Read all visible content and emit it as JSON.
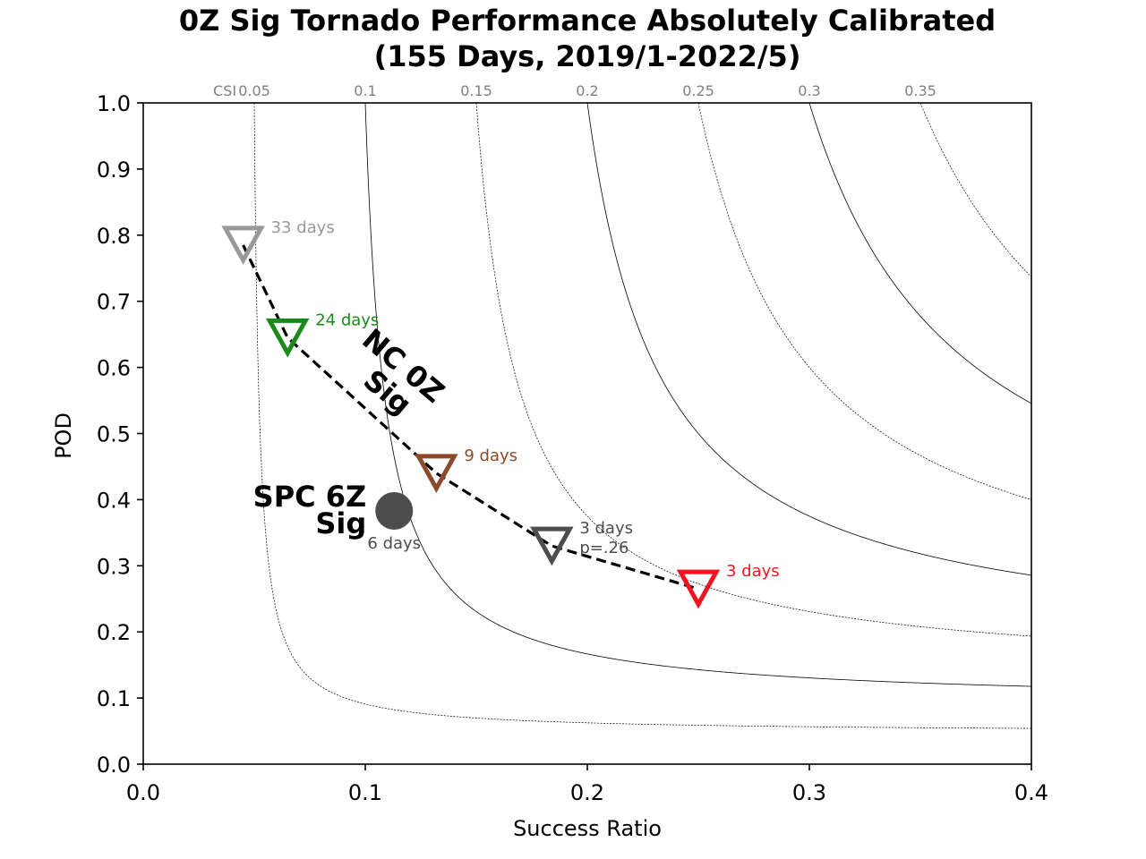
{
  "title_line1": "0Z Sig Tornado Performance Absolutely Calibrated",
  "title_line2": "(155 Days, 2019/1-2022/5)",
  "chart_data": {
    "type": "scatter",
    "title": "0Z Sig Tornado Performance Absolutely Calibrated (155 Days, 2019/1-2022/5)",
    "xlabel": "Success Ratio",
    "ylabel": "POD",
    "xlim": [
      0.0,
      0.4
    ],
    "ylim": [
      0.0,
      1.0
    ],
    "xticks": [
      "0.0",
      "0.1",
      "0.2",
      "0.3",
      "0.4"
    ],
    "yticks": [
      "0.0",
      "0.1",
      "0.2",
      "0.3",
      "0.4",
      "0.5",
      "0.6",
      "0.7",
      "0.8",
      "0.9",
      "1.0"
    ],
    "csi_prefix": "CSI",
    "csi_contours": [
      {
        "value": 0.05,
        "label": "0.05",
        "style": "dotted"
      },
      {
        "value": 0.1,
        "label": "0.1",
        "style": "solid"
      },
      {
        "value": 0.15,
        "label": "0.15",
        "style": "dotted"
      },
      {
        "value": 0.2,
        "label": "0.2",
        "style": "solid"
      },
      {
        "value": 0.25,
        "label": "0.25",
        "style": "dotted"
      },
      {
        "value": 0.3,
        "label": "0.3",
        "style": "solid"
      },
      {
        "value": 0.35,
        "label": "0.35",
        "style": "dotted"
      }
    ],
    "nc_series": {
      "label": "NC 0Z Sig",
      "line_color": "#000000",
      "points": [
        {
          "sr": 0.045,
          "pod": 0.785,
          "color": "#999999",
          "days": "33 days",
          "extra": ""
        },
        {
          "sr": 0.065,
          "pod": 0.645,
          "color": "#1a8a1a",
          "days": "24 days",
          "extra": ""
        },
        {
          "sr": 0.132,
          "pod": 0.44,
          "color": "#8b4a2b",
          "days": "9 days",
          "extra": ""
        },
        {
          "sr": 0.184,
          "pod": 0.33,
          "color": "#4d4d4d",
          "days": "3 days",
          "extra": "p=.26"
        },
        {
          "sr": 0.25,
          "pod": 0.265,
          "color": "#f21521",
          "days": "3 days",
          "extra": ""
        }
      ]
    },
    "spc_point": {
      "label_line1": "SPC 6Z",
      "label_line2": "Sig",
      "sr": 0.113,
      "pod": 0.383,
      "color": "#4d4d4d",
      "days": "6 days"
    }
  }
}
